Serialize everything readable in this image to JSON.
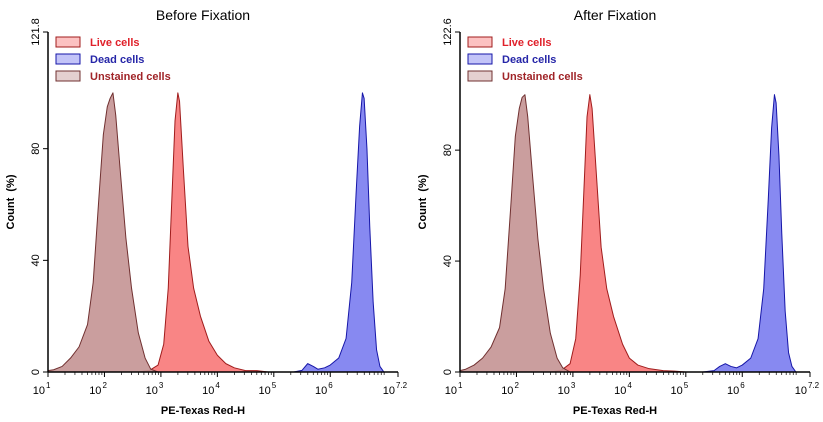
{
  "chart_data": [
    {
      "type": "area",
      "title": "Before Fixation",
      "xlabel": "PE-Texas Red-H",
      "ylabel": "Count  (%)",
      "x_scale": "log",
      "xlim": [
        1,
        7.2
      ],
      "ylim": [
        0,
        121.8
      ],
      "y_ticks": [
        "0",
        "40",
        "80",
        "121.8"
      ],
      "x_ticks": [
        {
          "base": "10",
          "exp": "1"
        },
        {
          "base": "10",
          "exp": "2"
        },
        {
          "base": "10",
          "exp": "3"
        },
        {
          "base": "10",
          "exp": "4"
        },
        {
          "base": "10",
          "exp": "5"
        },
        {
          "base": "10",
          "exp": "6"
        },
        {
          "base": "10",
          "exp": "7.2"
        }
      ],
      "legend_position": "top-left",
      "series": [
        {
          "name": "Live cells",
          "fill": "#f87878",
          "stroke": "#a01c1c",
          "label_color": "#e0202a",
          "points": [
            [
              2.6,
              0
            ],
            [
              2.8,
              0.6
            ],
            [
              2.95,
              2.5
            ],
            [
              3.05,
              10
            ],
            [
              3.13,
              30
            ],
            [
              3.2,
              65
            ],
            [
              3.25,
              90
            ],
            [
              3.3,
              100
            ],
            [
              3.33,
              97
            ],
            [
              3.4,
              72
            ],
            [
              3.48,
              45
            ],
            [
              3.58,
              30
            ],
            [
              3.7,
              20
            ],
            [
              3.85,
              11
            ],
            [
              4.0,
              6
            ],
            [
              4.15,
              3
            ],
            [
              4.3,
              1.5
            ],
            [
              4.5,
              0.5
            ],
            [
              4.7,
              0.5
            ],
            [
              4.9,
              0
            ]
          ]
        },
        {
          "name": "Dead cells",
          "fill": "#7a7cf0",
          "stroke": "#1616a8",
          "label_color": "#2626a8",
          "points": [
            [
              5.35,
              0
            ],
            [
              5.5,
              0.6
            ],
            [
              5.6,
              3
            ],
            [
              5.7,
              2
            ],
            [
              5.78,
              1
            ],
            [
              5.9,
              1.5
            ],
            [
              6.0,
              2.5
            ],
            [
              6.15,
              5
            ],
            [
              6.28,
              12
            ],
            [
              6.38,
              32
            ],
            [
              6.46,
              65
            ],
            [
              6.52,
              88
            ],
            [
              6.57,
              100
            ],
            [
              6.6,
              98
            ],
            [
              6.65,
              80
            ],
            [
              6.7,
              52
            ],
            [
              6.76,
              25
            ],
            [
              6.82,
              8
            ],
            [
              6.88,
              2
            ],
            [
              6.95,
              0
            ]
          ]
        },
        {
          "name": "Unstained cells",
          "fill": "#c49494",
          "stroke": "#703030",
          "label_color": "#a02428",
          "points": [
            [
              1.0,
              0.5
            ],
            [
              1.1,
              0.8
            ],
            [
              1.25,
              2
            ],
            [
              1.4,
              5
            ],
            [
              1.55,
              9
            ],
            [
              1.7,
              17
            ],
            [
              1.8,
              32
            ],
            [
              1.9,
              62
            ],
            [
              1.98,
              85
            ],
            [
              2.05,
              95
            ],
            [
              2.1,
              98
            ],
            [
              2.15,
              100
            ],
            [
              2.2,
              92
            ],
            [
              2.28,
              72
            ],
            [
              2.38,
              48
            ],
            [
              2.48,
              30
            ],
            [
              2.6,
              14
            ],
            [
              2.72,
              5
            ],
            [
              2.82,
              1
            ],
            [
              2.95,
              0
            ]
          ]
        }
      ]
    },
    {
      "type": "area",
      "title": "After Fixation",
      "xlabel": "PE-Texas Red-H",
      "ylabel": "Count  (%)",
      "x_scale": "log",
      "xlim": [
        1,
        7.2
      ],
      "ylim": [
        0,
        122.6
      ],
      "y_ticks": [
        "0",
        "40",
        "80",
        "122.6"
      ],
      "x_ticks": [
        {
          "base": "10",
          "exp": "1"
        },
        {
          "base": "10",
          "exp": "2"
        },
        {
          "base": "10",
          "exp": "3"
        },
        {
          "base": "10",
          "exp": "4"
        },
        {
          "base": "10",
          "exp": "5"
        },
        {
          "base": "10",
          "exp": "6"
        },
        {
          "base": "10",
          "exp": "7.2"
        }
      ],
      "legend_position": "top-left",
      "series": [
        {
          "name": "Live cells",
          "fill": "#f87878",
          "stroke": "#a01c1c",
          "label_color": "#e0202a",
          "points": [
            [
              2.6,
              0
            ],
            [
              2.8,
              0.7
            ],
            [
              2.95,
              3
            ],
            [
              3.05,
              12
            ],
            [
              3.13,
              35
            ],
            [
              3.2,
              68
            ],
            [
              3.25,
              92
            ],
            [
              3.3,
              100
            ],
            [
              3.34,
              95
            ],
            [
              3.42,
              70
            ],
            [
              3.5,
              45
            ],
            [
              3.6,
              30
            ],
            [
              3.72,
              20
            ],
            [
              3.88,
              10
            ],
            [
              4.0,
              5
            ],
            [
              4.15,
              2.5
            ],
            [
              4.35,
              1.2
            ],
            [
              4.6,
              0.5
            ],
            [
              4.8,
              0.3
            ],
            [
              5.0,
              0
            ]
          ]
        },
        {
          "name": "Dead cells",
          "fill": "#7a7cf0",
          "stroke": "#1616a8",
          "label_color": "#2626a8",
          "points": [
            [
              5.3,
              0
            ],
            [
              5.5,
              0.5
            ],
            [
              5.6,
              2
            ],
            [
              5.7,
              3
            ],
            [
              5.8,
              2
            ],
            [
              5.9,
              1.5
            ],
            [
              6.0,
              2.5
            ],
            [
              6.15,
              5
            ],
            [
              6.28,
              12
            ],
            [
              6.38,
              30
            ],
            [
              6.46,
              62
            ],
            [
              6.52,
              88
            ],
            [
              6.57,
              100
            ],
            [
              6.6,
              97
            ],
            [
              6.65,
              78
            ],
            [
              6.7,
              50
            ],
            [
              6.76,
              22
            ],
            [
              6.82,
              7
            ],
            [
              6.88,
              2
            ],
            [
              6.95,
              0
            ]
          ]
        },
        {
          "name": "Unstained cells",
          "fill": "#c49494",
          "stroke": "#703030",
          "label_color": "#a02428",
          "points": [
            [
              1.0,
              0.5
            ],
            [
              1.1,
              1
            ],
            [
              1.25,
              2.5
            ],
            [
              1.4,
              5
            ],
            [
              1.55,
              9
            ],
            [
              1.7,
              16
            ],
            [
              1.8,
              30
            ],
            [
              1.9,
              60
            ],
            [
              1.98,
              85
            ],
            [
              2.05,
              95
            ],
            [
              2.1,
              99
            ],
            [
              2.15,
              100
            ],
            [
              2.2,
              92
            ],
            [
              2.28,
              72
            ],
            [
              2.38,
              48
            ],
            [
              2.48,
              30
            ],
            [
              2.6,
              14
            ],
            [
              2.72,
              5
            ],
            [
              2.82,
              1.5
            ],
            [
              2.95,
              0
            ]
          ]
        }
      ]
    }
  ]
}
